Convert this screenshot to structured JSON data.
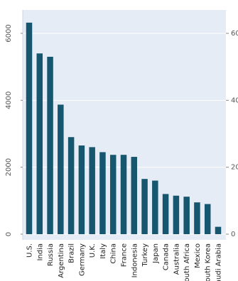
{
  "chart_data": {
    "type": "bar",
    "categories": [
      "U.S.",
      "India",
      "Russia",
      "Argentina",
      "Brazil",
      "Germany",
      "U.K.",
      "Italy",
      "China",
      "France",
      "Indonesia",
      "Turkey",
      "Japan",
      "Canada",
      "Australia",
      "South Africa",
      "Mexico",
      "South Korea",
      "Saudi Arabia"
    ],
    "values": [
      6320,
      5400,
      5300,
      3870,
      2900,
      2650,
      2600,
      2450,
      2370,
      2370,
      2310,
      1650,
      1600,
      1200,
      1150,
      1120,
      950,
      900,
      220
    ],
    "ylim": [
      0,
      6500
    ],
    "yticks": [
      0,
      2000,
      4000,
      6000
    ],
    "ytick_labels": [
      "0",
      "2000",
      "4000",
      "6000"
    ],
    "right_axis": true,
    "grid": true,
    "colors": {
      "bar": "#16566e",
      "panel": "#e6ecf5",
      "grid": "#ffffff"
    }
  }
}
